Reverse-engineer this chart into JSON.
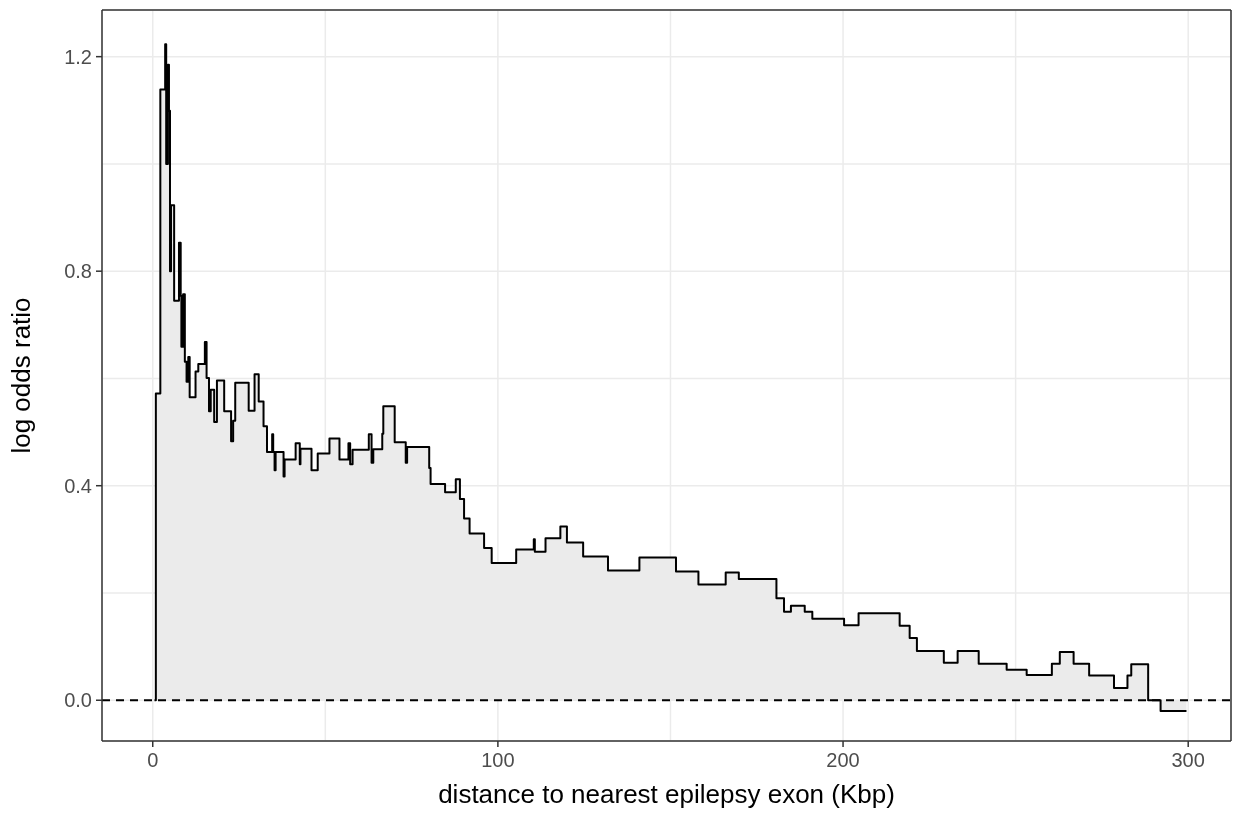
{
  "chart_data": {
    "type": "step",
    "xlabel": "distance to nearest epilepsy exon (Kbp)",
    "ylabel": "log odds ratio",
    "color": "#000000",
    "x": [
      0.5,
      0.9,
      2.2,
      3.6,
      3.9,
      4.4,
      4.7,
      5.0,
      5.3,
      6.2,
      7.6,
      8.1,
      8.3,
      8.8,
      9.3,
      9.8,
      10.3,
      10.7,
      12.4,
      13.2,
      15.1,
      15.6,
      16.3,
      16.8,
      17.8,
      18.6,
      20.7,
      22.7,
      23.3,
      23.9,
      27.8,
      29.5,
      30.7,
      32.1,
      33.1,
      34.6,
      34.9,
      35.3,
      35.6,
      37.9,
      38.2,
      41.4,
      42.6,
      42.8,
      46.0,
      47.8,
      51.2,
      54.1,
      56.7,
      57.2,
      57.9,
      62.6,
      63.4,
      63.9,
      66.5,
      66.8,
      70.1,
      73.3,
      73.7,
      80.1,
      80.5,
      84.7,
      87.8,
      89.0,
      90.2,
      91.8,
      96.0,
      98.2,
      105.3,
      110.4,
      110.7,
      113.8,
      118.1,
      120.0,
      124.7,
      131.9,
      141.0,
      151.6,
      158.1,
      166.0,
      169.8,
      180.7,
      182.9,
      184.9,
      188.9,
      191.1,
      200.3,
      204.5,
      216.4,
      219.3,
      221.4,
      229.2,
      233.2,
      239.3,
      247.4,
      253.2,
      260.5,
      262.8,
      266.8,
      271.3,
      278.5,
      282.4,
      283.5,
      288.4,
      292.0,
      299.5
    ],
    "values": [
      0,
      0.572,
      1.139,
      1.223,
      1.0,
      1.185,
      1.099,
      0.8,
      0.923,
      0.745,
      0.853,
      0.754,
      0.659,
      0.757,
      0.631,
      0.594,
      0.64,
      0.565,
      0.613,
      0.627,
      0.668,
      0.601,
      0.539,
      0.579,
      0.519,
      0.596,
      0.539,
      0.483,
      0.521,
      0.592,
      0.54,
      0.608,
      0.557,
      0.511,
      0.463,
      0.496,
      0.463,
      0.429,
      0.463,
      0.417,
      0.449,
      0.479,
      0.44,
      0.469,
      0.429,
      0.46,
      0.488,
      0.449,
      0.479,
      0.44,
      0.467,
      0.496,
      0.443,
      0.468,
      0.497,
      0.548,
      0.481,
      0.443,
      0.472,
      0.433,
      0.403,
      0.388,
      0.412,
      0.375,
      0.339,
      0.311,
      0.284,
      0.256,
      0.281,
      0.3,
      0.277,
      0.302,
      0.324,
      0.294,
      0.268,
      0.242,
      0.266,
      0.24,
      0.216,
      0.238,
      0.226,
      0.19,
      0.165,
      0.176,
      0.165,
      0.152,
      0.14,
      0.162,
      0.139,
      0.116,
      0.092,
      0.07,
      0.092,
      0.068,
      0.057,
      0.047,
      0.068,
      0.09,
      0.068,
      0.046,
      0.023,
      0.046,
      0.067,
      0.0,
      -0.02,
      -0.02
    ],
    "xlim": [
      -14.7,
      312.4
    ],
    "ylim": [
      -0.076,
      1.287
    ],
    "xticks": [
      0,
      {
        "value": 50,
        "label": null
      },
      100,
      {
        "value": 150,
        "label": null
      },
      200,
      {
        "value": 250,
        "label": null
      },
      300
    ],
    "yticks": [
      {
        "value": 0,
        "label": "0.0"
      },
      {
        "value": 0.2,
        "label": null
      },
      {
        "value": 0.4,
        "label": "0.4"
      },
      {
        "value": 0.6,
        "label": null
      },
      {
        "value": 0.8,
        "label": "0.8"
      },
      {
        "value": 1.0,
        "label": null
      },
      {
        "value": 1.2,
        "label": "1.2"
      }
    ],
    "grid": true,
    "ref_lines": [
      {
        "axis": "y",
        "value": 0,
        "color": "#000000",
        "line_style": "dashed"
      }
    ]
  }
}
